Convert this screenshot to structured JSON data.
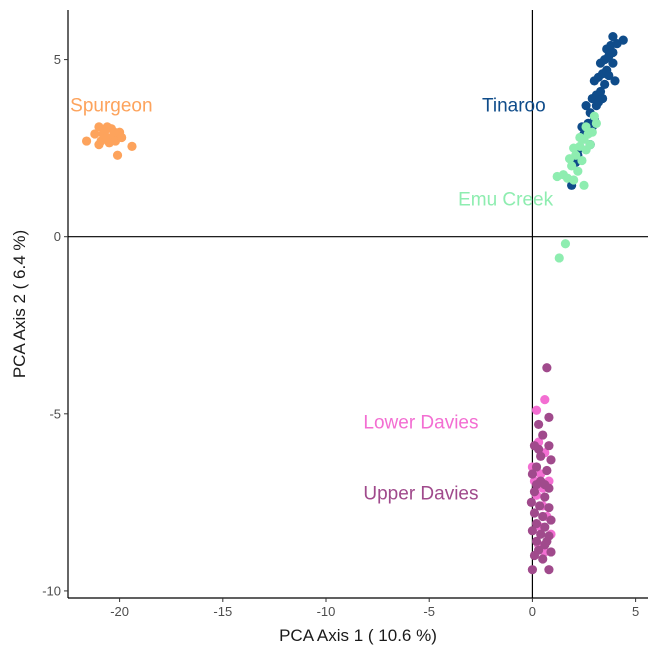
{
  "chart_data": {
    "type": "scatter",
    "title": "",
    "xlabel": "PCA Axis 1 ( 10.6 %)",
    "ylabel": "PCA Axis 2 ( 6.4 %)",
    "xlim": [
      -22.5,
      5.6
    ],
    "ylim": [
      -10.2,
      6.4
    ],
    "xticks": [
      -20,
      -15,
      -10,
      -5,
      0,
      5
    ],
    "yticks": [
      -10,
      -5,
      0,
      5
    ],
    "reference_lines": {
      "x": 0,
      "y": 0
    },
    "grid": false,
    "series": [
      {
        "name": "Spurgeon",
        "color": "#FDA35C",
        "label_at": [
          -20.4,
          3.7
        ],
        "points": [
          [
            -21.6,
            2.7
          ],
          [
            -21.2,
            2.9
          ],
          [
            -21.0,
            3.1
          ],
          [
            -20.9,
            2.7
          ],
          [
            -20.8,
            2.9
          ],
          [
            -20.7,
            3.0
          ],
          [
            -20.6,
            2.8
          ],
          [
            -20.5,
            2.65
          ],
          [
            -20.4,
            3.05
          ],
          [
            -20.3,
            2.85
          ],
          [
            -20.25,
            2.95
          ],
          [
            -20.2,
            2.7
          ],
          [
            -20.1,
            2.3
          ],
          [
            -20.0,
            2.95
          ],
          [
            -19.9,
            2.8
          ],
          [
            -19.4,
            2.55
          ],
          [
            -21.0,
            2.6
          ],
          [
            -20.6,
            3.1
          ]
        ]
      },
      {
        "name": "Tinaroo",
        "color": "#0F4C8A",
        "label_at": [
          -0.9,
          3.7
        ],
        "points": [
          [
            1.9,
            1.45
          ],
          [
            2.1,
            2.1
          ],
          [
            2.3,
            2.5
          ],
          [
            2.5,
            2.9
          ],
          [
            2.7,
            3.2
          ],
          [
            2.4,
            3.1
          ],
          [
            2.8,
            3.5
          ],
          [
            3.0,
            3.3
          ],
          [
            2.6,
            3.7
          ],
          [
            2.9,
            3.9
          ],
          [
            3.1,
            4.0
          ],
          [
            3.3,
            4.1
          ],
          [
            3.0,
            4.4
          ],
          [
            3.2,
            4.5
          ],
          [
            3.4,
            4.6
          ],
          [
            3.6,
            4.7
          ],
          [
            3.3,
            4.9
          ],
          [
            3.5,
            5.0
          ],
          [
            3.7,
            5.1
          ],
          [
            3.9,
            5.2
          ],
          [
            3.6,
            5.3
          ],
          [
            3.8,
            5.4
          ],
          [
            4.1,
            5.45
          ],
          [
            4.4,
            5.55
          ],
          [
            3.9,
            5.65
          ],
          [
            3.5,
            4.3
          ],
          [
            3.7,
            4.55
          ],
          [
            3.1,
            3.7
          ],
          [
            2.8,
            2.6
          ],
          [
            2.2,
            2.3
          ],
          [
            3.9,
            4.9
          ],
          [
            4.0,
            4.4
          ],
          [
            3.4,
            3.9
          ],
          [
            2.9,
            3.1
          ],
          [
            3.2,
            3.8
          ]
        ]
      },
      {
        "name": "Emu Creek",
        "color": "#8EEDB0",
        "label_at": [
          -1.3,
          1.05
        ],
        "points": [
          [
            1.2,
            1.7
          ],
          [
            1.5,
            1.75
          ],
          [
            1.7,
            1.65
          ],
          [
            1.9,
            2.0
          ],
          [
            2.1,
            2.3
          ],
          [
            2.3,
            2.55
          ],
          [
            2.5,
            2.75
          ],
          [
            2.7,
            2.9
          ],
          [
            2.0,
            1.6
          ],
          [
            2.2,
            1.85
          ],
          [
            2.4,
            2.15
          ],
          [
            2.6,
            2.45
          ],
          [
            2.8,
            2.6
          ],
          [
            2.9,
            2.95
          ],
          [
            3.1,
            3.2
          ],
          [
            2.5,
            1.45
          ],
          [
            1.6,
            -0.2
          ],
          [
            1.3,
            -0.6
          ],
          [
            2.3,
            2.8
          ],
          [
            2.0,
            2.5
          ],
          [
            1.8,
            2.2
          ],
          [
            2.6,
            3.1
          ],
          [
            3.0,
            3.4
          ]
        ]
      },
      {
        "name": "Lower Davies",
        "color": "#F36ED2",
        "label_at": [
          -5.4,
          -5.25
        ],
        "points": [
          [
            0.2,
            -4.9
          ],
          [
            0.6,
            -4.6
          ],
          [
            0.3,
            -5.8
          ],
          [
            0.6,
            -6.1
          ],
          [
            0.0,
            -6.5
          ],
          [
            0.4,
            -6.7
          ],
          [
            0.8,
            -6.9
          ],
          [
            0.2,
            -7.3
          ],
          [
            0.5,
            -7.6
          ],
          [
            0.7,
            -7.9
          ],
          [
            0.4,
            -8.2
          ],
          [
            0.9,
            -8.4
          ],
          [
            0.3,
            -8.7
          ],
          [
            0.6,
            -8.9
          ],
          [
            0.1,
            -6.9
          ],
          [
            0.5,
            -7.1
          ]
        ]
      },
      {
        "name": "Upper Davies",
        "color": "#A04A8C",
        "label_at": [
          -5.4,
          -7.25
        ],
        "points": [
          [
            0.7,
            -3.7
          ],
          [
            0.3,
            -5.3
          ],
          [
            0.8,
            -5.1
          ],
          [
            0.5,
            -5.6
          ],
          [
            0.1,
            -5.9
          ],
          [
            0.8,
            -5.9
          ],
          [
            0.4,
            -6.2
          ],
          [
            0.9,
            -6.3
          ],
          [
            0.2,
            -6.5
          ],
          [
            0.7,
            -6.6
          ],
          [
            0.0,
            -6.7
          ],
          [
            0.4,
            -6.9
          ],
          [
            0.8,
            -7.1
          ],
          [
            0.1,
            -7.2
          ],
          [
            0.6,
            -7.35
          ],
          [
            -0.05,
            -7.5
          ],
          [
            0.35,
            -7.6
          ],
          [
            0.8,
            -7.65
          ],
          [
            0.1,
            -7.8
          ],
          [
            0.5,
            -7.9
          ],
          [
            0.9,
            -8.0
          ],
          [
            0.2,
            -8.1
          ],
          [
            0.6,
            -8.2
          ],
          [
            0.0,
            -8.3
          ],
          [
            0.4,
            -8.4
          ],
          [
            0.8,
            -8.45
          ],
          [
            0.2,
            -8.6
          ],
          [
            0.6,
            -8.7
          ],
          [
            0.3,
            -8.85
          ],
          [
            0.9,
            -8.9
          ],
          [
            0.1,
            -9.0
          ],
          [
            0.5,
            -9.1
          ],
          [
            0.0,
            -9.4
          ],
          [
            0.8,
            -9.4
          ],
          [
            0.3,
            -6.0
          ],
          [
            0.6,
            -7.0
          ],
          [
            0.2,
            -7.0
          ],
          [
            0.7,
            -8.6
          ]
        ]
      }
    ]
  }
}
